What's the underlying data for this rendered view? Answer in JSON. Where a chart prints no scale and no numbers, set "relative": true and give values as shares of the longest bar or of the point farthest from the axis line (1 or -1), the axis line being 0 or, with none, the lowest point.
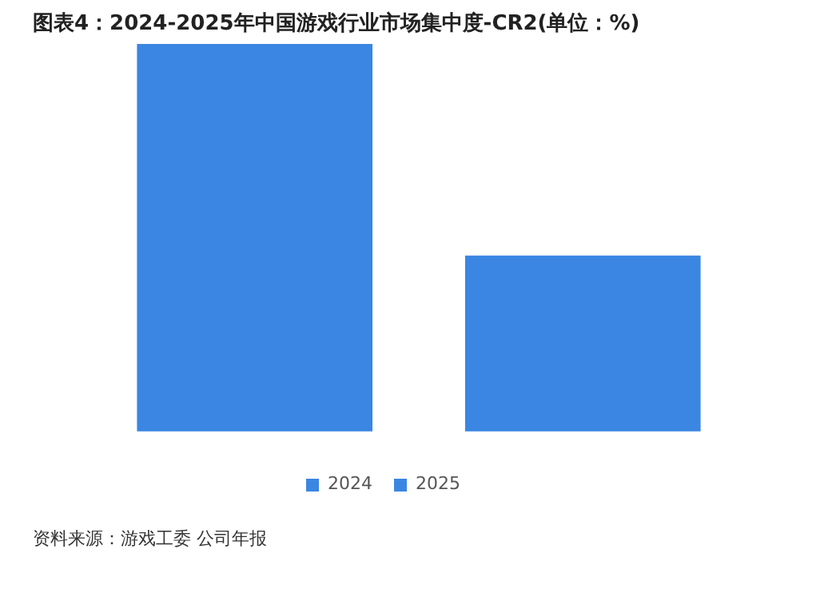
{
  "chart_data": {
    "type": "bar",
    "title": "图表4：2024-2025年中国游戏行业市场集中度-CR2(单位：%)",
    "categories": [
      null
    ],
    "relative": true,
    "legend": "bottom",
    "series": [
      {
        "name": "2024",
        "color": "#3a86e2",
        "values": [
          1
        ]
      },
      {
        "name": "2025",
        "color": "#3a86e2",
        "values": [
          0.454
        ]
      }
    ],
    "annotations": [
      "资料来源：游戏工委 公司年报"
    ]
  }
}
